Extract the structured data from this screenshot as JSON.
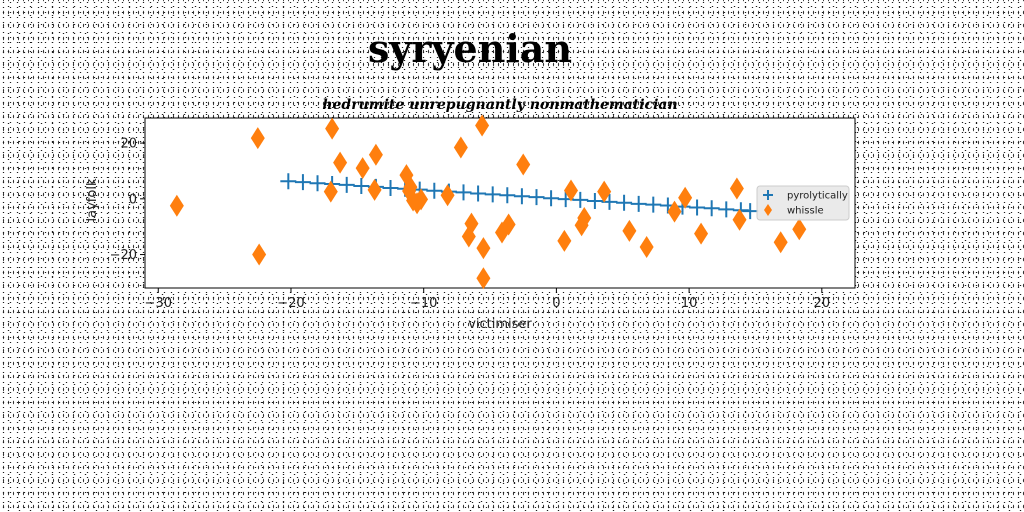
{
  "chart_data": {
    "type": "scatter",
    "title": "syryenian",
    "subtitle": "hedrumite unrepugnantly nonmathematician",
    "xlabel": "victimiser",
    "ylabel": "layfolk",
    "xlim": [
      -31,
      22.5
    ],
    "ylim": [
      -32,
      29
    ],
    "xticks": [
      -30,
      -20,
      -10,
      0,
      10,
      20
    ],
    "yticks": [
      -20,
      0,
      20
    ],
    "grid": false,
    "legend_position": "right",
    "series": [
      {
        "name": "pyrolytically",
        "marker": "plus",
        "color": "#1f77b4",
        "x": [
          -20.2,
          -19.1,
          -18.0,
          -16.9,
          -15.8,
          -14.7,
          -13.6,
          -12.5,
          -11.4,
          -10.3,
          -9.2,
          -8.1,
          -7.0,
          -5.9,
          -4.8,
          -3.7,
          -2.6,
          -1.5,
          -0.4,
          0.7,
          1.8,
          2.9,
          4.0,
          5.1,
          6.2,
          7.3,
          8.4,
          9.5,
          10.6,
          11.7,
          12.8,
          13.9,
          14.6
        ],
        "y": [
          6.3,
          6.0,
          5.6,
          5.3,
          5.0,
          4.6,
          4.3,
          3.9,
          3.6,
          3.3,
          2.9,
          2.6,
          2.3,
          1.9,
          1.6,
          1.3,
          0.9,
          0.6,
          0.2,
          -0.1,
          -0.4,
          -0.8,
          -1.1,
          -1.4,
          -1.8,
          -2.1,
          -2.4,
          -2.8,
          -3.1,
          -3.4,
          -3.8,
          -4.1,
          -4.4
        ]
      },
      {
        "name": "whissle",
        "marker": "diamond",
        "color": "#ff7f0e",
        "x": [
          -28.6,
          -22.5,
          -22.4,
          -16.9,
          -17.0,
          -16.3,
          -14.6,
          -13.6,
          -13.7,
          -11.3,
          -11.1,
          -11.0,
          -10.8,
          -10.5,
          -10.2,
          -8.2,
          -7.2,
          -6.6,
          -6.4,
          -5.6,
          -5.5,
          -5.5,
          -4.1,
          -3.6,
          -2.5,
          0.6,
          1.1,
          1.9,
          2.1,
          3.6,
          5.5,
          6.8,
          8.9,
          9.7,
          10.9,
          13.6,
          13.8,
          16.9,
          18.3
        ],
        "y": [
          -2.5,
          21.8,
          -20.0,
          25.2,
          2.6,
          13.0,
          11.0,
          15.8,
          3.2,
          8.5,
          2.8,
          4.2,
          -0.6,
          -1.6,
          -0.2,
          1.3,
          18.4,
          -13.5,
          -8.9,
          26.3,
          -17.7,
          -28.5,
          -12.1,
          -9.2,
          12.3,
          -15.1,
          3.0,
          -9.5,
          -6.9,
          2.6,
          -11.5,
          -17.3,
          -4.6,
          0.4,
          -12.5,
          3.7,
          -7.5,
          -15.6,
          -10.9
        ]
      }
    ]
  }
}
